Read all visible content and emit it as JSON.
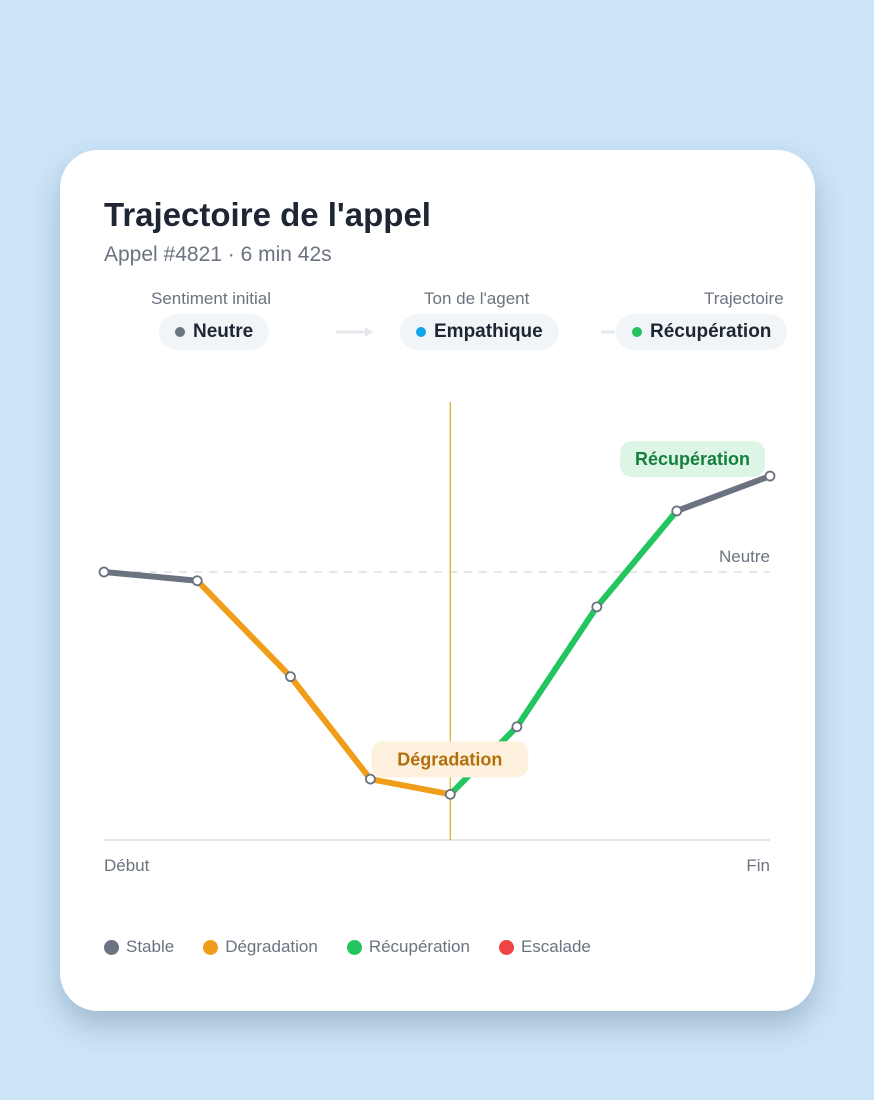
{
  "card": {
    "title": "Trajectoire de l'appel",
    "subtitle": "Appel #4821 · 6 min 42s"
  },
  "meta": [
    {
      "label": "Sentiment initial",
      "value": "Neutre",
      "dot_color": "#6b7280"
    },
    {
      "label": "Ton de l'agent",
      "value": "Empathique",
      "dot_color": "#0ea5e9"
    },
    {
      "label": "Trajectoire",
      "value": "Récupération",
      "dot_color": "#22c55e"
    }
  ],
  "colors": {
    "stable": "#6b7280",
    "degradation": "#f09d1a",
    "recovery": "#22c55e",
    "escalation": "#ef4444",
    "marker": "#e0b84a"
  },
  "chart_data": {
    "type": "line",
    "x_axis_labels": [
      "Début",
      "Fin"
    ],
    "reference_line": {
      "label": "Neutre",
      "value": 0
    },
    "ylim": [
      -1,
      1
    ],
    "points": [
      {
        "x": 0.0,
        "y": 0.0
      },
      {
        "x": 0.14,
        "y": -0.04
      },
      {
        "x": 0.28,
        "y": -0.48
      },
      {
        "x": 0.4,
        "y": -0.95
      },
      {
        "x": 0.52,
        "y": -1.02
      },
      {
        "x": 0.62,
        "y": -0.71
      },
      {
        "x": 0.74,
        "y": -0.16
      },
      {
        "x": 0.86,
        "y": 0.28
      },
      {
        "x": 1.0,
        "y": 0.44
      }
    ],
    "segments": [
      {
        "from": 0,
        "to": 1,
        "state": "stable"
      },
      {
        "from": 1,
        "to": 2,
        "state": "degradation"
      },
      {
        "from": 2,
        "to": 3,
        "state": "degradation"
      },
      {
        "from": 3,
        "to": 4,
        "state": "degradation"
      },
      {
        "from": 4,
        "to": 5,
        "state": "recovery"
      },
      {
        "from": 5,
        "to": 6,
        "state": "recovery"
      },
      {
        "from": 6,
        "to": 7,
        "state": "recovery"
      },
      {
        "from": 7,
        "to": 8,
        "state": "stable"
      }
    ],
    "event_marker_x": 0.52,
    "annotations": [
      {
        "text": "Dégradation",
        "state": "degradation"
      },
      {
        "text": "Récupération",
        "state": "recovery"
      }
    ],
    "legend": [
      {
        "label": "Stable",
        "state": "stable"
      },
      {
        "label": "Dégradation",
        "state": "degradation"
      },
      {
        "label": "Récupération",
        "state": "recovery"
      },
      {
        "label": "Escalade",
        "state": "escalation"
      }
    ]
  }
}
